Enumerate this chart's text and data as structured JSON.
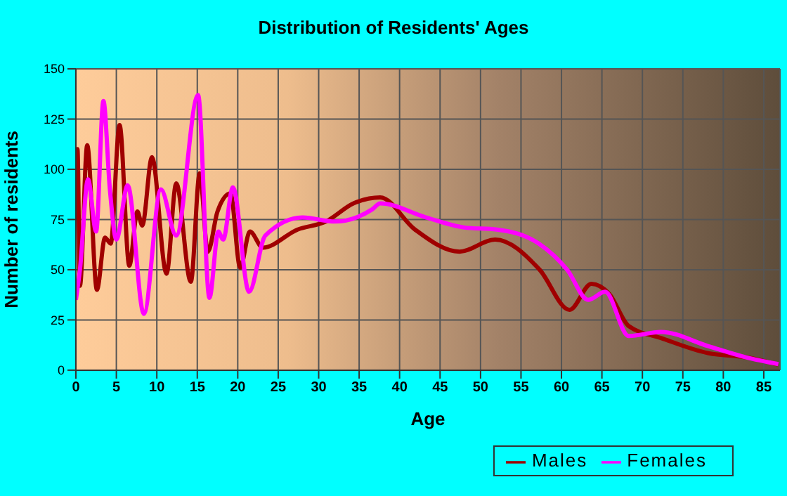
{
  "chart_data": {
    "type": "line",
    "title": "Distribution of Residents' Ages",
    "xlabel": "Age",
    "ylabel": "Number of residents",
    "xlim": [
      0,
      87
    ],
    "xticks": [
      0,
      5,
      10,
      15,
      20,
      25,
      30,
      35,
      40,
      45,
      50,
      55,
      60,
      65,
      70,
      75,
      80,
      85
    ],
    "ylim": [
      0,
      150
    ],
    "yticks": [
      0,
      25,
      50,
      75,
      100,
      125,
      150
    ],
    "grid": true,
    "legend": "bottom right",
    "marker": "none",
    "line_style": "solid",
    "series": [
      {
        "name": "Males",
        "color": "#a00000",
        "x": [
          0,
          0.2,
          0.5,
          1.4,
          2.6,
          3.6,
          4.3,
          5.4,
          6.6,
          7.6,
          8.2,
          9.4,
          11.2,
          12.4,
          14.2,
          15.3,
          16.3,
          17.5,
          19.1,
          20.3,
          21.5,
          23.1,
          27.4,
          30.9,
          34.3,
          37.6,
          41.9,
          47.4,
          51.8,
          57.3,
          61,
          63.7,
          65.9,
          68.3,
          72.3,
          78.1,
          82.8,
          86.8
        ],
        "values": [
          75,
          110,
          42,
          112,
          40,
          66,
          63,
          122,
          52,
          79,
          72,
          106,
          48,
          93,
          44,
          98,
          59,
          79,
          88,
          51,
          69,
          61,
          70,
          74,
          83,
          86,
          70,
          59,
          65,
          50,
          30,
          43,
          38,
          22,
          16,
          8.5,
          6.4,
          2.8
        ]
      },
      {
        "name": "Females",
        "color": "#ff00ff",
        "x": [
          0,
          0.5,
          1.5,
          2.5,
          3.4,
          4.2,
          5,
          6.4,
          8.4,
          10.5,
          12.4,
          15.1,
          16.5,
          17.6,
          18.2,
          19.4,
          21.4,
          23.4,
          28,
          32,
          36.6,
          37.6,
          43.3,
          48,
          52,
          57.2,
          60.7,
          63.3,
          65.4,
          68.3,
          72.3,
          78.1,
          82.8,
          86.8
        ],
        "values": [
          35,
          50,
          95,
          69,
          134,
          90,
          65,
          92,
          28,
          90,
          67,
          137,
          36,
          69,
          65,
          91,
          39,
          67,
          76,
          74,
          80,
          83,
          76,
          71,
          70,
          63,
          50,
          35,
          39,
          17,
          19,
          12,
          6.4,
          3
        ]
      }
    ]
  }
}
